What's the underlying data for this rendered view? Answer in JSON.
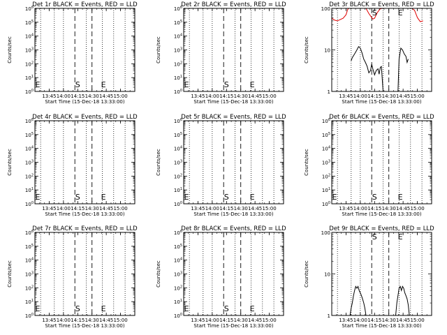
{
  "chart_data": [
    {
      "type": "line",
      "title": "Det 1r BLACK = Events, RED = LLD",
      "xlabel": "Start Time (15-Dec-18 13:33:00)",
      "ylabel": "Counts/sec",
      "log_y": true,
      "ylim": [
        1,
        1000000
      ],
      "xlim": [
        13.5,
        15.25
      ],
      "y_tick_labels": [
        "10^0",
        "10^1",
        "10^2",
        "10^3",
        "10^4",
        "10^5",
        "10^6"
      ],
      "x_tick_labels": [
        "13:45",
        "14:00",
        "14:15",
        "14:30",
        "14:45",
        "15:00"
      ],
      "x_ticks": [
        13.75,
        14.0,
        14.25,
        14.5,
        14.75,
        15.0
      ],
      "dotted_x": [
        13.6,
        13.84,
        14.0,
        14.4,
        14.68,
        14.88,
        15.08
      ],
      "dashed_x": [
        14.2,
        14.5
      ],
      "marker_S_x": 14.25,
      "marker_E_x": 14.7,
      "markers": [
        "S",
        "E"
      ],
      "edge_marker": "E",
      "series": []
    },
    {
      "type": "line",
      "title": "Det 2r BLACK = Events, RED = LLD",
      "xlabel": "Start Time (15-Dec-18 13:33:00)",
      "ylabel": "Counts/sec",
      "log_y": true,
      "ylim": [
        1,
        1000000
      ],
      "xlim": [
        13.5,
        15.25
      ],
      "y_tick_labels": [
        "10^0",
        "10^1",
        "10^2",
        "10^3",
        "10^4",
        "10^5",
        "10^6"
      ],
      "x_tick_labels": [
        "13:45",
        "14:00",
        "14:15",
        "14:30",
        "14:45",
        "15:00"
      ],
      "x_ticks": [
        13.75,
        14.0,
        14.25,
        14.5,
        14.75,
        15.0
      ],
      "dotted_x": [
        13.6,
        13.84,
        14.0,
        14.4,
        14.68,
        14.88,
        15.08
      ],
      "dashed_x": [
        14.2,
        14.5
      ],
      "marker_S_x": 14.25,
      "marker_E_x": 14.7,
      "markers": [
        "S",
        "E"
      ],
      "edge_marker": "E",
      "series": []
    },
    {
      "type": "line",
      "title": "Det 3r BLACK = Events, RED = LLD",
      "xlabel": "Start Time (15-Dec-18 13:33:00)",
      "ylabel": "Counts/sec",
      "log_y": true,
      "ylim": [
        1,
        100
      ],
      "xlim": [
        13.5,
        15.25
      ],
      "y_tick_labels": [
        "1",
        "10",
        "100"
      ],
      "x_tick_labels": [
        "13:45",
        "14:00",
        "14:15",
        "14:30",
        "14:45",
        "15:00"
      ],
      "x_ticks": [
        13.75,
        14.0,
        14.25,
        14.5,
        14.75,
        15.0
      ],
      "dotted_x": [
        13.6,
        13.84,
        14.0,
        14.4,
        14.68,
        14.88,
        15.08
      ],
      "dashed_x": [
        14.2,
        14.5
      ],
      "marker_S_x": 14.25,
      "marker_E_x": 14.7,
      "markers": [
        "S",
        "E"
      ],
      "edge_marker": "",
      "series": [
        {
          "color": "#000000",
          "x": [
            13.84,
            13.86,
            13.9,
            13.94,
            13.97,
            14.0,
            14.03,
            14.06,
            14.09,
            14.12,
            14.15,
            14.18,
            14.2,
            14.22,
            14.25,
            14.28,
            14.31,
            14.33,
            14.35,
            14.37,
            14.4,
            14.66,
            14.68,
            14.71,
            14.74,
            14.77,
            14.8,
            14.82,
            14.84
          ],
          "y": [
            5.5,
            6.5,
            8,
            10,
            12,
            11,
            8.5,
            6,
            5,
            4,
            2.8,
            3.2,
            4.5,
            3.5,
            2.5,
            3.2,
            3.5,
            2.6,
            3.8,
            4,
            1,
            1,
            6,
            11,
            10,
            8,
            7,
            5,
            6
          ]
        },
        {
          "color": "#e00000",
          "x": [
            13.5,
            13.55,
            13.6,
            13.65,
            13.7,
            13.75,
            13.78,
            13.8,
            13.85,
            13.9,
            13.95,
            14.0,
            14.05,
            14.1,
            14.15,
            14.2,
            14.22,
            14.25,
            14.28,
            14.3,
            14.35,
            14.4,
            14.45,
            14.5,
            14.6,
            14.65,
            14.7,
            14.8,
            14.9,
            14.95,
            15.0,
            15.05,
            15.1
          ],
          "y": [
            58,
            52,
            50,
            54,
            58,
            70,
            95,
            100,
            100,
            100,
            100,
            100,
            100,
            100,
            75,
            60,
            55,
            58,
            70,
            80,
            98,
            100,
            100,
            100,
            100,
            100,
            100,
            100,
            100,
            90,
            60,
            48,
            50
          ]
        }
      ]
    },
    {
      "type": "line",
      "title": "Det 4r BLACK = Events, RED = LLD",
      "xlabel": "Start Time (15-Dec-18 13:33:00)",
      "ylabel": "Counts/sec",
      "log_y": true,
      "ylim": [
        1,
        1000000
      ],
      "xlim": [
        13.5,
        15.25
      ],
      "y_tick_labels": [
        "10^0",
        "10^1",
        "10^2",
        "10^3",
        "10^4",
        "10^5",
        "10^6"
      ],
      "x_tick_labels": [
        "13:45",
        "14:00",
        "14:15",
        "14:30",
        "14:45",
        "15:00"
      ],
      "x_ticks": [
        13.75,
        14.0,
        14.25,
        14.5,
        14.75,
        15.0
      ],
      "dotted_x": [
        13.6,
        13.84,
        14.0,
        14.4,
        14.68,
        14.88,
        15.08
      ],
      "dashed_x": [
        14.2,
        14.5
      ],
      "marker_S_x": 14.25,
      "marker_E_x": 14.7,
      "markers": [
        "S",
        "E"
      ],
      "edge_marker": "E",
      "series": []
    },
    {
      "type": "line",
      "title": "Det 5r BLACK = Events, RED = LLD",
      "xlabel": "Start Time (15-Dec-18 13:33:00)",
      "ylabel": "Counts/sec",
      "log_y": true,
      "ylim": [
        1,
        1000000
      ],
      "xlim": [
        13.5,
        15.25
      ],
      "y_tick_labels": [
        "10^0",
        "10^1",
        "10^2",
        "10^3",
        "10^4",
        "10^5",
        "10^6"
      ],
      "x_tick_labels": [
        "13:45",
        "14:00",
        "14:15",
        "14:30",
        "14:45",
        "15:00"
      ],
      "x_ticks": [
        13.75,
        14.0,
        14.25,
        14.5,
        14.75,
        15.0
      ],
      "dotted_x": [
        13.6,
        13.84,
        14.0,
        14.4,
        14.68,
        14.88,
        15.08
      ],
      "dashed_x": [
        14.2,
        14.5
      ],
      "marker_S_x": 14.25,
      "marker_E_x": 14.7,
      "markers": [
        "S",
        "E"
      ],
      "edge_marker": "E",
      "series": []
    },
    {
      "type": "line",
      "title": "Det 6r BLACK = Events, RED = LLD",
      "xlabel": "Start Time (15-Dec-18 13:33:00)",
      "ylabel": "Counts/sec",
      "log_y": true,
      "ylim": [
        1,
        1000000
      ],
      "xlim": [
        13.5,
        15.25
      ],
      "y_tick_labels": [
        "10^0",
        "10^1",
        "10^2",
        "10^3",
        "10^4",
        "10^5",
        "10^6"
      ],
      "x_tick_labels": [
        "13:45",
        "14:00",
        "14:15",
        "14:30",
        "14:45",
        "15:00"
      ],
      "x_ticks": [
        13.75,
        14.0,
        14.25,
        14.5,
        14.75,
        15.0
      ],
      "dotted_x": [
        13.6,
        13.84,
        14.0,
        14.4,
        14.68,
        14.88,
        15.08
      ],
      "dashed_x": [
        14.2,
        14.5
      ],
      "marker_S_x": 14.25,
      "marker_E_x": 14.7,
      "markers": [
        "S",
        "E"
      ],
      "edge_marker": "E",
      "series": []
    },
    {
      "type": "line",
      "title": "Det 7r BLACK = Events, RED = LLD",
      "xlabel": "Start Time (15-Dec-18 13:33:00)",
      "ylabel": "Counts/sec",
      "log_y": true,
      "ylim": [
        1,
        1000000
      ],
      "xlim": [
        13.5,
        15.25
      ],
      "y_tick_labels": [
        "10^0",
        "10^1",
        "10^2",
        "10^3",
        "10^4",
        "10^5",
        "10^6"
      ],
      "x_tick_labels": [
        "13:45",
        "14:00",
        "14:15",
        "14:30",
        "14:45",
        "15:00"
      ],
      "x_ticks": [
        13.75,
        14.0,
        14.25,
        14.5,
        14.75,
        15.0
      ],
      "dotted_x": [
        13.6,
        13.84,
        14.0,
        14.4,
        14.68,
        14.88,
        15.08
      ],
      "dashed_x": [
        14.2,
        14.5
      ],
      "marker_S_x": 14.25,
      "marker_E_x": 14.7,
      "markers": [
        "S",
        "E"
      ],
      "edge_marker": "E",
      "series": []
    },
    {
      "type": "line",
      "title": "Det 8r BLACK = Events, RED = LLD",
      "xlabel": "Start Time (15-Dec-18 13:33:00)",
      "ylabel": "Counts/sec",
      "log_y": true,
      "ylim": [
        1,
        1000000
      ],
      "xlim": [
        13.5,
        15.25
      ],
      "y_tick_labels": [
        "10^0",
        "10^1",
        "10^2",
        "10^3",
        "10^4",
        "10^5",
        "10^6"
      ],
      "x_tick_labels": [
        "13:45",
        "14:00",
        "14:15",
        "14:30",
        "14:45",
        "15:00"
      ],
      "x_ticks": [
        13.75,
        14.0,
        14.25,
        14.5,
        14.75,
        15.0
      ],
      "dotted_x": [
        13.6,
        13.84,
        14.0,
        14.4,
        14.68,
        14.88,
        15.08
      ],
      "dashed_x": [
        14.2,
        14.5
      ],
      "marker_S_x": 14.25,
      "marker_E_x": 14.7,
      "markers": [
        "S",
        "E"
      ],
      "edge_marker": "E",
      "series": []
    },
    {
      "type": "line",
      "title": "Det 9r BLACK = Events, RED = LLD",
      "xlabel": "Start Time (15-Dec-18 13:33:00)",
      "ylabel": "Counts/sec",
      "log_y": true,
      "ylim": [
        1,
        100
      ],
      "xlim": [
        13.5,
        15.25
      ],
      "y_tick_labels": [
        "1",
        "10",
        "100"
      ],
      "x_tick_labels": [
        "13:45",
        "14:00",
        "14:15",
        "14:30",
        "14:45",
        "15:00"
      ],
      "x_ticks": [
        13.75,
        14.0,
        14.25,
        14.5,
        14.75,
        15.0
      ],
      "dotted_x": [
        13.6,
        13.84,
        14.0,
        14.4,
        14.68,
        14.88,
        15.08
      ],
      "dashed_x": [
        14.2,
        14.5
      ],
      "marker_S_x": 14.25,
      "marker_E_x": 14.7,
      "markers": [
        "S",
        "E"
      ],
      "edge_marker": "",
      "series": [
        {
          "color": "#000000",
          "x": [
            13.82,
            13.84,
            13.86,
            13.88,
            13.9,
            13.92,
            13.94,
            13.96,
            13.98,
            14.0,
            14.02,
            14.04,
            14.06,
            14.08,
            14.1,
            14.62,
            14.64,
            14.66,
            14.68,
            14.7,
            14.72,
            14.74,
            14.76,
            14.78,
            14.8,
            14.82,
            14.84,
            14.86
          ],
          "y": [
            1,
            1.5,
            2,
            3,
            4,
            5,
            4.5,
            5,
            4,
            3.5,
            3,
            2.5,
            2,
            1.5,
            1,
            1,
            2,
            3,
            4.5,
            5,
            4,
            5,
            4.5,
            3.5,
            3,
            2.5,
            1.8,
            1
          ]
        }
      ]
    }
  ]
}
